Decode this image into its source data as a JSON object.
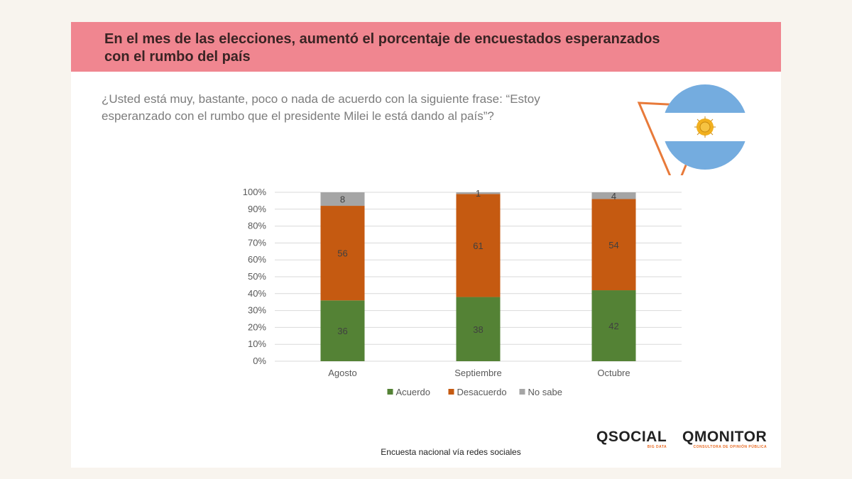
{
  "title": "En el mes de las elecciones, aumentó el porcentaje de encuestados esperanzados con el rumbo del país",
  "question": "¿Usted está muy, bastante, poco o nada de acuerdo con la siguiente frase: “Estoy esperanzado con el rumbo que el presidente Milei le está dando al país”?",
  "footer_note": "Encuesta nacional vía redes sociales",
  "logos": {
    "social": {
      "main": "QSOCIAL",
      "sub": "BIG DATA"
    },
    "monitor": {
      "main": "QMONITOR",
      "sub": "CONSULTORA DE OPINIÓN PÚBLICA"
    }
  },
  "flag": {
    "light_blue": "#74acdf",
    "sun": "#f2b01e",
    "outline": "#e87a3a"
  },
  "colors": {
    "acuerdo": "#548235",
    "desacuerdo": "#c55a11",
    "no_sabe": "#a5a5a5"
  },
  "chart_data": {
    "type": "bar",
    "stacked": true,
    "categories": [
      "Agosto",
      "Septiembre",
      "Octubre"
    ],
    "series": [
      {
        "name": "Acuerdo",
        "values": [
          36,
          38,
          42
        ],
        "color": "#548235"
      },
      {
        "name": "Desacuerdo",
        "values": [
          56,
          61,
          54
        ],
        "color": "#c55a11"
      },
      {
        "name": "No sabe",
        "values": [
          8,
          1,
          4
        ],
        "color": "#a5a5a5"
      }
    ],
    "y_ticks": [
      "0%",
      "10%",
      "20%",
      "30%",
      "40%",
      "50%",
      "60%",
      "70%",
      "80%",
      "90%",
      "100%"
    ],
    "ylim": [
      0,
      100
    ],
    "grid": true,
    "legend": "bottom"
  }
}
